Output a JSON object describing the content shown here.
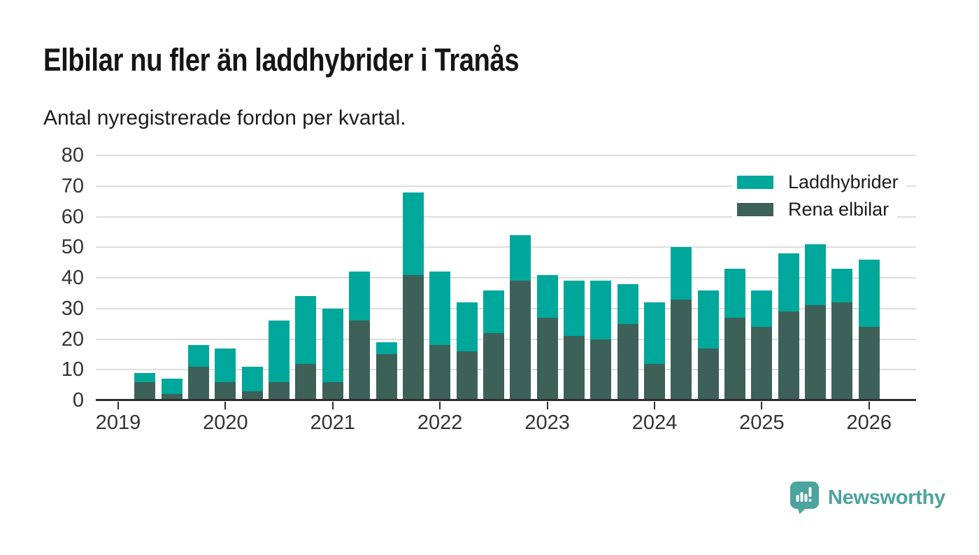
{
  "header": {
    "title": "Elbilar nu fler än laddhybrider i Tranås",
    "subtitle": "Antal nyregistrerade fordon per kvartal."
  },
  "legend": {
    "items": [
      {
        "label": "Laddhybrider",
        "color": "#00A79B"
      },
      {
        "label": "Rena elbilar",
        "color": "#3D6158"
      }
    ]
  },
  "footer": {
    "brand": "Newsworthy",
    "brand_color": "#4BA49D",
    "logo_icon": "speech-bubble-bar-chart"
  },
  "chart_data": {
    "type": "bar",
    "stacked": true,
    "title": "Elbilar nu fler än laddhybrider i Tranås",
    "subtitle": "Antal nyregistrerade fordon per kvartal.",
    "categories": [
      "2019 Q2",
      "2019 Q3",
      "2019 Q4",
      "2020 Q1",
      "2020 Q2",
      "2020 Q3",
      "2020 Q4",
      "2021 Q1",
      "2021 Q2",
      "2021 Q3",
      "2021 Q4",
      "2022 Q1",
      "2022 Q2",
      "2022 Q3",
      "2022 Q4",
      "2023 Q1",
      "2023 Q2",
      "2023 Q3",
      "2023 Q4",
      "2024 Q1",
      "2024 Q2",
      "2024 Q3",
      "2024 Q4",
      "2025 Q1",
      "2025 Q2",
      "2025 Q3",
      "2025 Q4",
      "2026 Q1"
    ],
    "series": [
      {
        "name": "Rena elbilar",
        "color": "#3D6158",
        "values": [
          6,
          2,
          11,
          6,
          3,
          6,
          12,
          6,
          26,
          15,
          41,
          18,
          16,
          22,
          39,
          27,
          21,
          20,
          25,
          12,
          33,
          17,
          27,
          24,
          29,
          31,
          32,
          24
        ]
      },
      {
        "name": "Laddhybrider",
        "color": "#00A79B",
        "values": [
          3,
          5,
          7,
          11,
          8,
          20,
          22,
          24,
          16,
          4,
          27,
          24,
          16,
          14,
          15,
          14,
          18,
          19,
          13,
          20,
          17,
          19,
          16,
          12,
          19,
          20,
          11,
          22
        ]
      }
    ],
    "totals": [
      9,
      7,
      18,
      17,
      11,
      26,
      34,
      30,
      42,
      19,
      68,
      42,
      32,
      36,
      54,
      41,
      39,
      39,
      38,
      32,
      50,
      36,
      43,
      36,
      48,
      51,
      43,
      46
    ],
    "x_tick_labels": [
      "2019",
      "2020",
      "2021",
      "2022",
      "2023",
      "2024",
      "2025",
      "2026"
    ],
    "y_ticks": [
      0,
      10,
      20,
      30,
      40,
      50,
      60,
      70,
      80
    ],
    "ylim": [
      0,
      80
    ],
    "grid": "horizontal",
    "legend_position": "top-right",
    "colors": {
      "grid": "#DDDDDD",
      "axis": "#2E2E2E",
      "tick_text": "#333333"
    }
  }
}
